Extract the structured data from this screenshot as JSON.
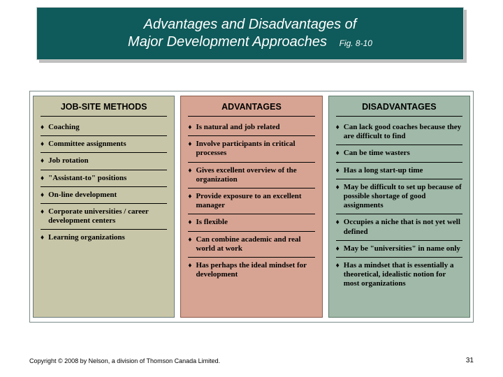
{
  "title": {
    "line1": "Advantages and Disadvantages of",
    "line2": "Major Development Approaches",
    "fig": "Fig. 8-10"
  },
  "columns": {
    "methods": {
      "header": "JOB-SITE METHODS",
      "bg": "#c8c6a8",
      "items": [
        "Coaching",
        "Committee assignments",
        "Job rotation",
        "\"Assistant-to\" positions",
        "On-line development",
        "Corporate universities / career development centers",
        "Learning organizations"
      ]
    },
    "advantages": {
      "header": "ADVANTAGES",
      "bg": "#d7a493",
      "items": [
        "Is natural and job related",
        "Involve participants in critical processes",
        "Gives excellent overview of the organization",
        "Provide exposure to an excellent manager",
        "Is flexible",
        "Can combine academic and real world at work",
        "Has perhaps the ideal mindset for development"
      ]
    },
    "disadvantages": {
      "header": "DISADVANTAGES",
      "bg": "#a0b9a8",
      "items": [
        "Can lack good coaches because they are difficult to find",
        "Can be time wasters",
        "Has a long start-up time",
        "May be difficult to set up because of possible shortage of good assignments",
        "Occupies a niche that is not yet well defined",
        "May be \"universities\" in name only",
        "Has a mindset that is essentially a theoretical, idealistic notion for most organizations"
      ]
    }
  },
  "footer": {
    "copyright": "Copyright © 2008 by Nelson, a division of Thomson Canada Limited.",
    "page": "31"
  },
  "bullet_char": "♦"
}
